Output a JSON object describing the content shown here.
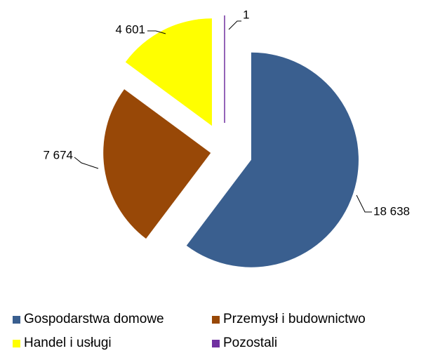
{
  "chart_data": {
    "type": "pie",
    "categories": [
      "Gospodarstwa domowe",
      "Przemysł i budownictwo",
      "Handel i usługi",
      "Pozostali"
    ],
    "values": [
      18638,
      7674,
      4601,
      1
    ],
    "value_labels": [
      "18 638",
      "7 674",
      "4 601",
      "1"
    ],
    "colors": [
      "#3a5f8f",
      "#984807",
      "#ffff00",
      "#7030a0"
    ],
    "legend": "bottom"
  }
}
